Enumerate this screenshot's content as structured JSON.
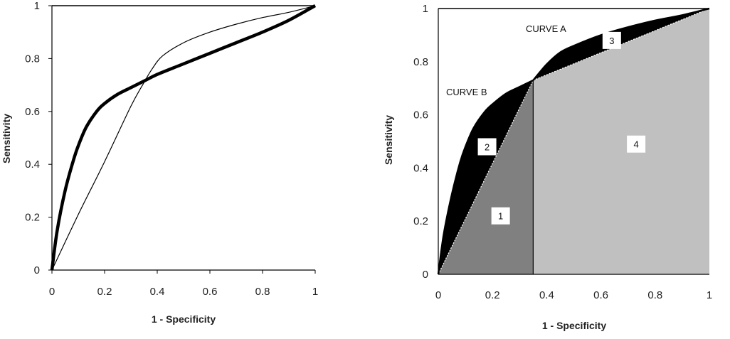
{
  "chart_data": [
    {
      "type": "line",
      "xlabel": "1 - Specificity",
      "ylabel": "Sensitivity",
      "xlim": [
        0,
        1
      ],
      "ylim": [
        0,
        1
      ],
      "x_ticks": [
        "0",
        "0.2",
        "0.4",
        "0.6",
        "0.8",
        "1"
      ],
      "y_ticks": [
        "0",
        "0.2",
        "0.4",
        "0.6",
        "0.8",
        "1"
      ],
      "grid": false,
      "series": [
        {
          "style": "thick",
          "x": [
            0,
            0.02,
            0.05,
            0.08,
            0.1,
            0.13,
            0.17,
            0.2,
            0.25,
            0.3,
            0.35,
            0.4,
            0.5,
            0.6,
            0.7,
            0.8,
            0.9,
            1
          ],
          "y": [
            0,
            0.15,
            0.3,
            0.41,
            0.47,
            0.54,
            0.6,
            0.63,
            0.665,
            0.69,
            0.715,
            0.74,
            0.78,
            0.82,
            0.86,
            0.9,
            0.945,
            1
          ]
        },
        {
          "style": "thin",
          "x": [
            0,
            0.1,
            0.2,
            0.3,
            0.35,
            0.38,
            0.42,
            0.5,
            0.6,
            0.7,
            0.8,
            0.9,
            1
          ],
          "y": [
            0,
            0.21,
            0.41,
            0.62,
            0.71,
            0.76,
            0.81,
            0.86,
            0.9,
            0.93,
            0.955,
            0.975,
            1
          ]
        }
      ]
    },
    {
      "type": "area",
      "xlabel": "1 - Specificity",
      "ylabel": "Sensitivity",
      "xlim": [
        0,
        1
      ],
      "ylim": [
        0,
        1
      ],
      "x_ticks": [
        "0",
        "0.2",
        "0.4",
        "0.6",
        "0.8",
        "1"
      ],
      "y_ticks": [
        "0",
        "0.2",
        "0.4",
        "0.6",
        "0.8",
        "1"
      ],
      "grid": false,
      "annotations": [
        "CURVE A",
        "CURVE B"
      ],
      "crossing_point": {
        "x": 0.35,
        "y": 0.73
      },
      "curve_b": {
        "x": [
          0,
          0.02,
          0.05,
          0.08,
          0.1,
          0.13,
          0.17,
          0.2,
          0.25,
          0.3,
          0.35
        ],
        "y": [
          0,
          0.15,
          0.3,
          0.42,
          0.48,
          0.55,
          0.61,
          0.64,
          0.68,
          0.705,
          0.73
        ]
      },
      "curve_a": {
        "x": [
          0.35,
          0.4,
          0.45,
          0.5,
          0.6,
          0.7,
          0.8,
          0.9,
          1
        ],
        "y": [
          0.73,
          0.79,
          0.835,
          0.86,
          0.9,
          0.93,
          0.955,
          0.975,
          1
        ]
      },
      "regions": [
        {
          "label": "1",
          "x": 0.23,
          "y": 0.22,
          "color": "#808080"
        },
        {
          "label": "2",
          "x": 0.18,
          "y": 0.48,
          "color": "#000000"
        },
        {
          "label": "3",
          "x": 0.64,
          "y": 0.88,
          "color": "#000000"
        },
        {
          "label": "4",
          "x": 0.73,
          "y": 0.49,
          "color": "#c0c0c0"
        }
      ]
    }
  ]
}
